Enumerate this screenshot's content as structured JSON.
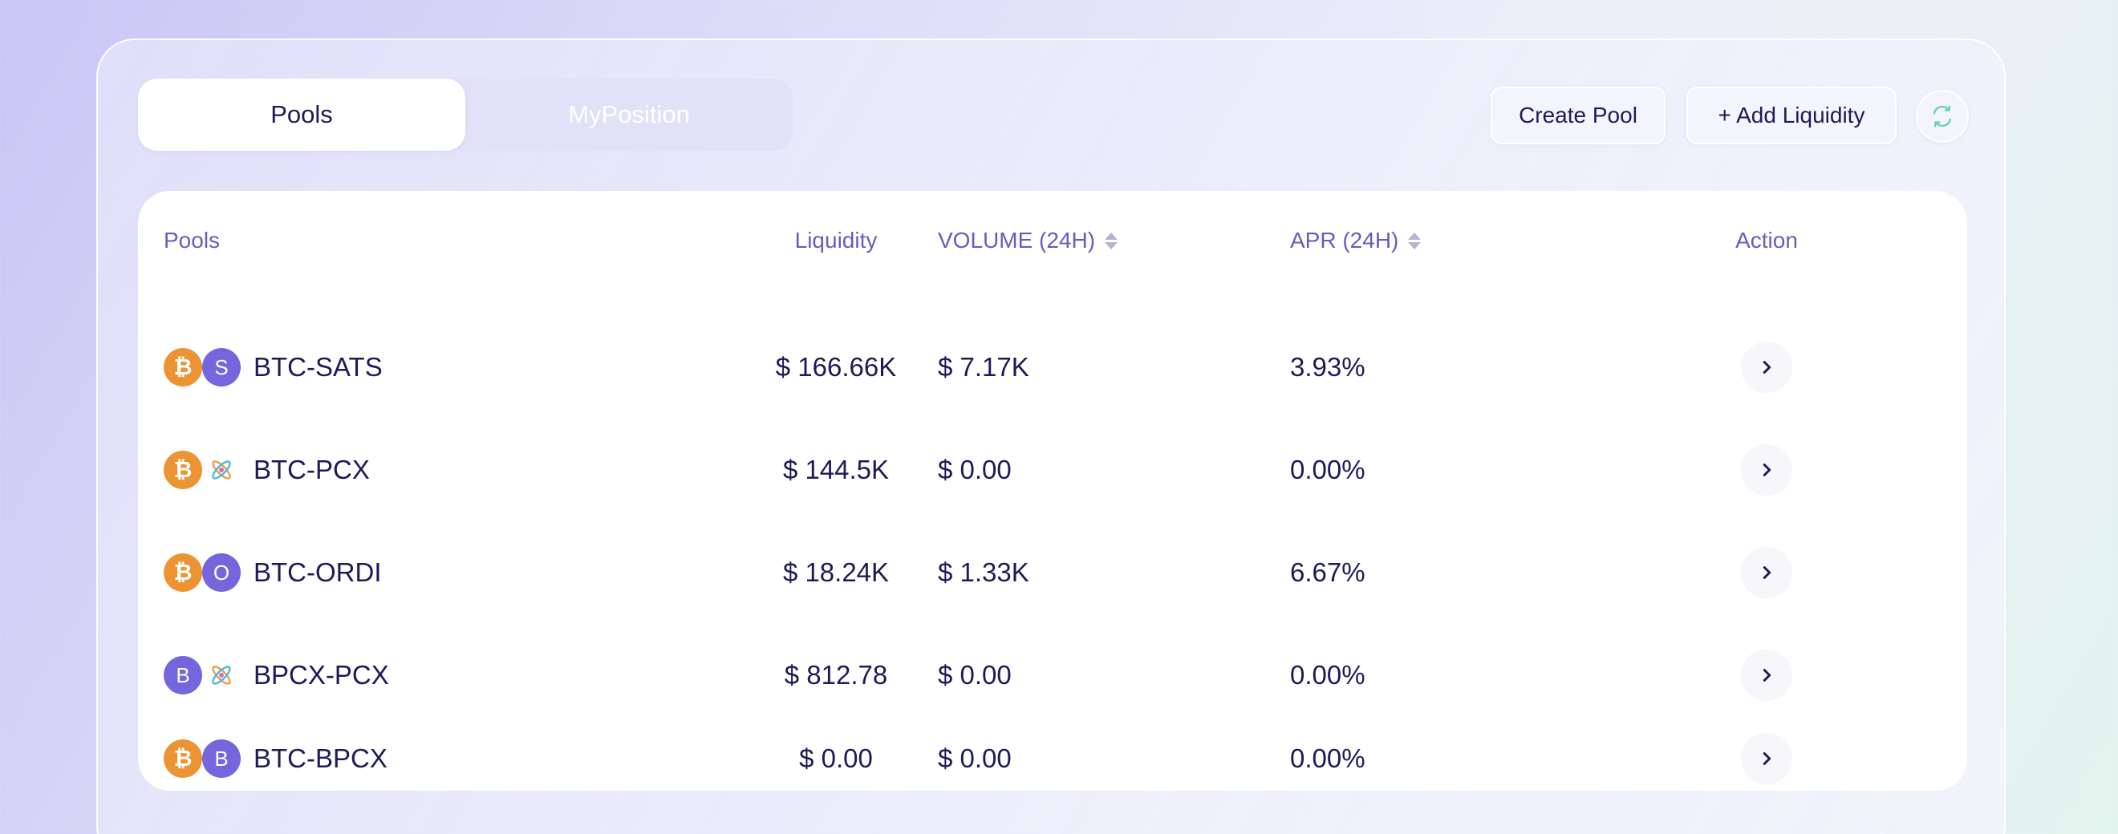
{
  "tabs": [
    {
      "label": "Pools",
      "active": true
    },
    {
      "label": "MyPosition",
      "active": false
    }
  ],
  "toolbar": {
    "create_pool_label": "Create Pool",
    "add_liquidity_label": "+ Add Liquidity",
    "refresh_icon": "refresh-icon"
  },
  "table": {
    "headers": {
      "pools": "Pools",
      "liquidity": "Liquidity",
      "volume": "VOLUME (24H)",
      "apr": "APR (24H)",
      "action": "Action"
    },
    "rows": [
      {
        "pair": "BTC-SATS",
        "icon_a": "₿",
        "icon_b": "S",
        "liquidity": "$ 166.66K",
        "volume": "$ 7.17K",
        "apr": "3.93%"
      },
      {
        "pair": "BTC-PCX",
        "icon_a": "₿",
        "icon_b": "",
        "liquidity": "$ 144.5K",
        "volume": "$ 0.00",
        "apr": "0.00%"
      },
      {
        "pair": "BTC-ORDI",
        "icon_a": "₿",
        "icon_b": "O",
        "liquidity": "$ 18.24K",
        "volume": "$ 1.33K",
        "apr": "6.67%"
      },
      {
        "pair": "BPCX-PCX",
        "icon_a": "B",
        "icon_b": "",
        "liquidity": "$ 812.78",
        "volume": "$ 0.00",
        "apr": "0.00%"
      },
      {
        "pair": "BTC-BPCX",
        "icon_a": "₿",
        "icon_b": "B",
        "liquidity": "$ 0.00",
        "volume": "$ 0.00",
        "apr": "0.00%"
      }
    ]
  },
  "colors": {
    "accent": "#6a5bbf",
    "text": "#1e1a59",
    "btc": "#ec9434",
    "token_purple": "#7467de",
    "refresh": "#5fd3b4"
  }
}
